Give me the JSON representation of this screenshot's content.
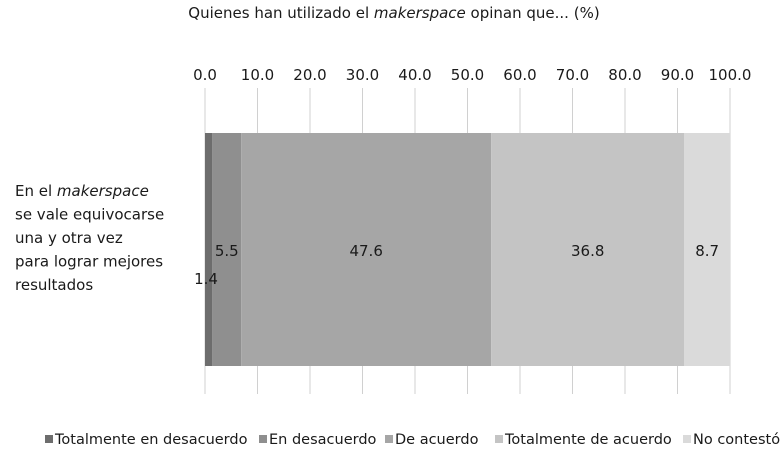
{
  "chart_data": {
    "type": "bar",
    "orientation": "horizontal",
    "stacked": true,
    "title": {
      "prefix": "Quienes han utilizado el ",
      "emph": "makerspace",
      "suffix": " opinan que... (%)"
    },
    "category_label": {
      "lines": [
        [
          {
            "text": "En el "
          },
          {
            "text": "makerspace",
            "italic": true
          }
        ],
        [
          {
            "text": "se vale equivocarse"
          }
        ],
        [
          {
            "text": "una y otra vez"
          }
        ],
        [
          {
            "text": "para lograr mejores"
          }
        ],
        [
          {
            "text": "resultados"
          }
        ]
      ]
    },
    "xlim": [
      0,
      100
    ],
    "ticks": [
      "0.0",
      "10.0",
      "20.0",
      "30.0",
      "40.0",
      "50.0",
      "60.0",
      "70.0",
      "80.0",
      "90.0",
      "100.0"
    ],
    "grid": true,
    "legend_position": "bottom",
    "series": [
      {
        "name": "Totalmente en desacuerdo",
        "value": 1.4,
        "label": "1.4",
        "color": "#6d6d6d"
      },
      {
        "name": "En desacuerdo",
        "value": 5.5,
        "label": "5.5",
        "color": "#8f8f8f"
      },
      {
        "name": "De acuerdo",
        "value": 47.6,
        "label": "47.6",
        "color": "#a6a6a6"
      },
      {
        "name": "Totalmente de acuerdo",
        "value": 36.8,
        "label": "36.8",
        "color": "#c4c4c4"
      },
      {
        "name": "No contestó",
        "value": 8.7,
        "label": "8.7",
        "color": "#dadada"
      }
    ]
  }
}
